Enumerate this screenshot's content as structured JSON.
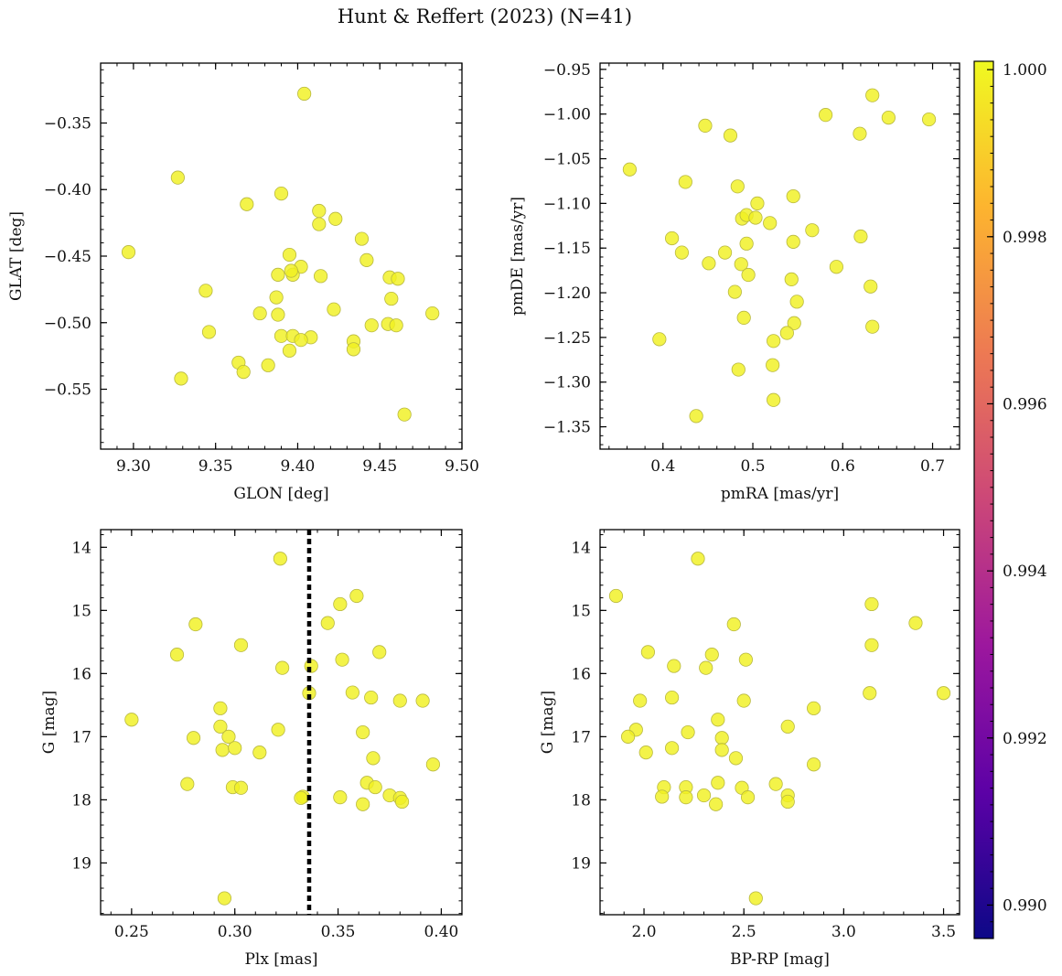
{
  "figure": {
    "title": "Hunt & Reffert (2023) (N=41)",
    "point_color": "#f0f021",
    "point_edge": "#b8b840",
    "colorbar_stops": [
      "#0d0887",
      "#5c01a6",
      "#9c179e",
      "#cc4778",
      "#ed7953",
      "#fdb42f",
      "#f0f921"
    ]
  },
  "chart_data": [
    {
      "type": "scatter",
      "xlabel": "GLON [deg]",
      "ylabel": "GLAT [deg]",
      "xlim": [
        9.28,
        9.5
      ],
      "ylim": [
        -0.595,
        -0.305
      ],
      "y_inverted": false,
      "xticks": [
        9.3,
        9.35,
        9.4,
        9.45,
        9.5
      ],
      "xtick_labels": [
        "9.30",
        "9.35",
        "9.40",
        "9.45",
        "9.50"
      ],
      "yticks": [
        -0.55,
        -0.5,
        -0.45,
        -0.4,
        -0.35
      ],
      "ytick_labels": [
        "−0.55",
        "−0.50",
        "−0.45",
        "−0.40",
        "−0.35"
      ],
      "x": [
        9.404,
        9.327,
        9.297,
        9.369,
        9.39,
        9.413,
        9.423,
        9.413,
        9.395,
        9.439,
        9.388,
        9.402,
        9.397,
        9.396,
        9.414,
        9.442,
        9.456,
        9.461,
        9.344,
        9.387,
        9.457,
        9.377,
        9.388,
        9.422,
        9.482,
        9.346,
        9.445,
        9.455,
        9.46,
        9.39,
        9.397,
        9.408,
        9.402,
        9.434,
        9.434,
        9.395,
        9.364,
        9.382,
        9.367,
        9.329,
        9.465
      ],
      "y": [
        -0.328,
        -0.391,
        -0.447,
        -0.411,
        -0.403,
        -0.416,
        -0.422,
        -0.426,
        -0.449,
        -0.437,
        -0.464,
        -0.458,
        -0.464,
        -0.461,
        -0.465,
        -0.453,
        -0.466,
        -0.467,
        -0.476,
        -0.481,
        -0.482,
        -0.493,
        -0.494,
        -0.49,
        -0.493,
        -0.507,
        -0.502,
        -0.501,
        -0.502,
        -0.51,
        -0.51,
        -0.511,
        -0.513,
        -0.514,
        -0.52,
        -0.521,
        -0.53,
        -0.532,
        -0.537,
        -0.542,
        -0.569
      ],
      "color_values": [
        1,
        1,
        1,
        1,
        1,
        1,
        1,
        1,
        1,
        1,
        1,
        1,
        1,
        1,
        1,
        1,
        1,
        1,
        1,
        1,
        1,
        1,
        1,
        1,
        1,
        1,
        1,
        1,
        1,
        1,
        1,
        1,
        1,
        1,
        1,
        1,
        1,
        1,
        1,
        1,
        1
      ],
      "vline": null
    },
    {
      "type": "scatter",
      "xlabel": "pmRA [mas/yr]",
      "ylabel": "pmDE [mas/yr]",
      "xlim": [
        0.33,
        0.73
      ],
      "ylim": [
        -1.375,
        -0.943
      ],
      "y_inverted": false,
      "xticks": [
        0.4,
        0.5,
        0.6,
        0.7
      ],
      "xtick_labels": [
        "0.4",
        "0.5",
        "0.6",
        "0.7"
      ],
      "yticks": [
        -1.35,
        -1.3,
        -1.25,
        -1.2,
        -1.15,
        -1.1,
        -1.05,
        -1.0,
        -0.95
      ],
      "ytick_labels": [
        "−1.35",
        "−1.30",
        "−1.25",
        "−1.20",
        "−1.15",
        "−1.10",
        "−1.05",
        "−1.00",
        "−0.95"
      ],
      "x": [
        0.633,
        0.581,
        0.651,
        0.696,
        0.447,
        0.475,
        0.619,
        0.363,
        0.425,
        0.483,
        0.545,
        0.505,
        0.488,
        0.493,
        0.503,
        0.519,
        0.566,
        0.41,
        0.421,
        0.469,
        0.493,
        0.545,
        0.451,
        0.487,
        0.593,
        0.495,
        0.62,
        0.631,
        0.48,
        0.549,
        0.543,
        0.49,
        0.546,
        0.633,
        0.538,
        0.396,
        0.523,
        0.522,
        0.484,
        0.523,
        0.437
      ],
      "y": [
        -0.979,
        -1.001,
        -1.004,
        -1.006,
        -1.013,
        -1.024,
        -1.022,
        -1.062,
        -1.076,
        -1.081,
        -1.092,
        -1.1,
        -1.117,
        -1.113,
        -1.116,
        -1.122,
        -1.13,
        -1.139,
        -1.155,
        -1.155,
        -1.145,
        -1.143,
        -1.167,
        -1.168,
        -1.171,
        -1.18,
        -1.137,
        -1.193,
        -1.199,
        -1.21,
        -1.185,
        -1.228,
        -1.234,
        -1.238,
        -1.245,
        -1.252,
        -1.254,
        -1.281,
        -1.286,
        -1.32,
        -1.338
      ],
      "color_values": [
        1,
        1,
        1,
        1,
        1,
        1,
        1,
        1,
        1,
        1,
        1,
        1,
        1,
        1,
        1,
        1,
        1,
        1,
        1,
        1,
        1,
        1,
        1,
        1,
        1,
        1,
        1,
        1,
        1,
        1,
        1,
        1,
        1,
        1,
        1,
        1,
        1,
        1,
        1,
        1,
        1
      ],
      "vline": null
    },
    {
      "type": "scatter",
      "xlabel": "Plx [mas]",
      "ylabel": "G [mag]",
      "xlim": [
        0.235,
        0.41
      ],
      "ylim": [
        19.82,
        13.72
      ],
      "y_inverted": true,
      "xticks": [
        0.25,
        0.3,
        0.35,
        0.4
      ],
      "xtick_labels": [
        "0.25",
        "0.30",
        "0.35",
        "0.40"
      ],
      "yticks": [
        14,
        15,
        16,
        17,
        18,
        19
      ],
      "ytick_labels": [
        "14",
        "15",
        "16",
        "17",
        "18",
        "19"
      ],
      "x": [
        0.322,
        0.359,
        0.351,
        0.281,
        0.345,
        0.303,
        0.272,
        0.37,
        0.352,
        0.323,
        0.337,
        0.357,
        0.336,
        0.366,
        0.38,
        0.391,
        0.293,
        0.25,
        0.293,
        0.321,
        0.28,
        0.297,
        0.362,
        0.367,
        0.294,
        0.3,
        0.312,
        0.396,
        0.277,
        0.364,
        0.299,
        0.303,
        0.368,
        0.375,
        0.333,
        0.332,
        0.351,
        0.38,
        0.381,
        0.362,
        0.295
      ],
      "y": [
        14.18,
        14.77,
        14.9,
        15.22,
        15.2,
        15.55,
        15.7,
        15.66,
        15.78,
        15.91,
        15.88,
        16.3,
        16.31,
        16.38,
        16.43,
        16.43,
        16.55,
        16.73,
        16.84,
        16.89,
        17.02,
        17.0,
        16.93,
        17.34,
        17.21,
        17.18,
        17.25,
        17.44,
        17.75,
        17.73,
        17.8,
        17.81,
        17.8,
        17.93,
        17.95,
        17.97,
        17.96,
        17.97,
        18.03,
        18.07,
        19.56
      ],
      "color_values": [
        1,
        1,
        1,
        1,
        1,
        1,
        1,
        1,
        1,
        1,
        1,
        1,
        1,
        1,
        1,
        1,
        1,
        1,
        1,
        1,
        1,
        1,
        1,
        1,
        1,
        1,
        1,
        1,
        1,
        1,
        1,
        1,
        1,
        1,
        1,
        1,
        1,
        1,
        1,
        1,
        1
      ],
      "vline": 0.336
    },
    {
      "type": "scatter",
      "xlabel": "BP-RP [mag]",
      "ylabel": "G [mag]",
      "xlim": [
        1.78,
        3.58
      ],
      "ylim": [
        19.82,
        13.72
      ],
      "y_inverted": true,
      "xticks": [
        2.0,
        2.5,
        3.0,
        3.5
      ],
      "xtick_labels": [
        "2.0",
        "2.5",
        "3.0",
        "3.5"
      ],
      "yticks": [
        14,
        15,
        16,
        17,
        18,
        19
      ],
      "ytick_labels": [
        "14",
        "15",
        "16",
        "17",
        "18",
        "19"
      ],
      "x": [
        2.27,
        1.86,
        3.14,
        2.45,
        3.36,
        3.14,
        2.02,
        2.34,
        2.51,
        2.15,
        2.31,
        3.13,
        3.5,
        2.14,
        1.98,
        2.5,
        2.85,
        2.37,
        2.72,
        1.96,
        2.22,
        1.92,
        2.39,
        2.39,
        2.46,
        2.14,
        2.01,
        2.85,
        2.37,
        2.66,
        2.1,
        2.21,
        2.49,
        2.72,
        2.3,
        2.09,
        2.21,
        2.52,
        2.72,
        2.36,
        2.56
      ],
      "y": [
        14.18,
        14.77,
        14.9,
        15.22,
        15.2,
        15.55,
        15.66,
        15.7,
        15.78,
        15.88,
        15.91,
        16.31,
        16.31,
        16.38,
        16.43,
        16.43,
        16.55,
        16.73,
        16.84,
        16.89,
        16.93,
        17.0,
        17.02,
        17.21,
        17.34,
        17.18,
        17.25,
        17.44,
        17.73,
        17.75,
        17.8,
        17.8,
        17.81,
        17.93,
        17.93,
        17.95,
        17.96,
        17.96,
        18.03,
        18.07,
        19.56
      ],
      "color_values": [
        1,
        1,
        1,
        1,
        1,
        1,
        1,
        1,
        1,
        1,
        1,
        1,
        1,
        1,
        1,
        1,
        1,
        1,
        1,
        1,
        1,
        1,
        1,
        1,
        1,
        1,
        1,
        1,
        1,
        1,
        1,
        1,
        1,
        1,
        1,
        1,
        1,
        1,
        1,
        1,
        1
      ],
      "vline": null
    }
  ],
  "colorbar": {
    "min": 0.9896,
    "max": 1.0001,
    "ticks": [
      0.99,
      0.992,
      0.994,
      0.996,
      0.998,
      1.0
    ],
    "tick_labels": [
      "0.990",
      "0.992",
      "0.994",
      "0.996",
      "0.998",
      "1.000"
    ]
  }
}
